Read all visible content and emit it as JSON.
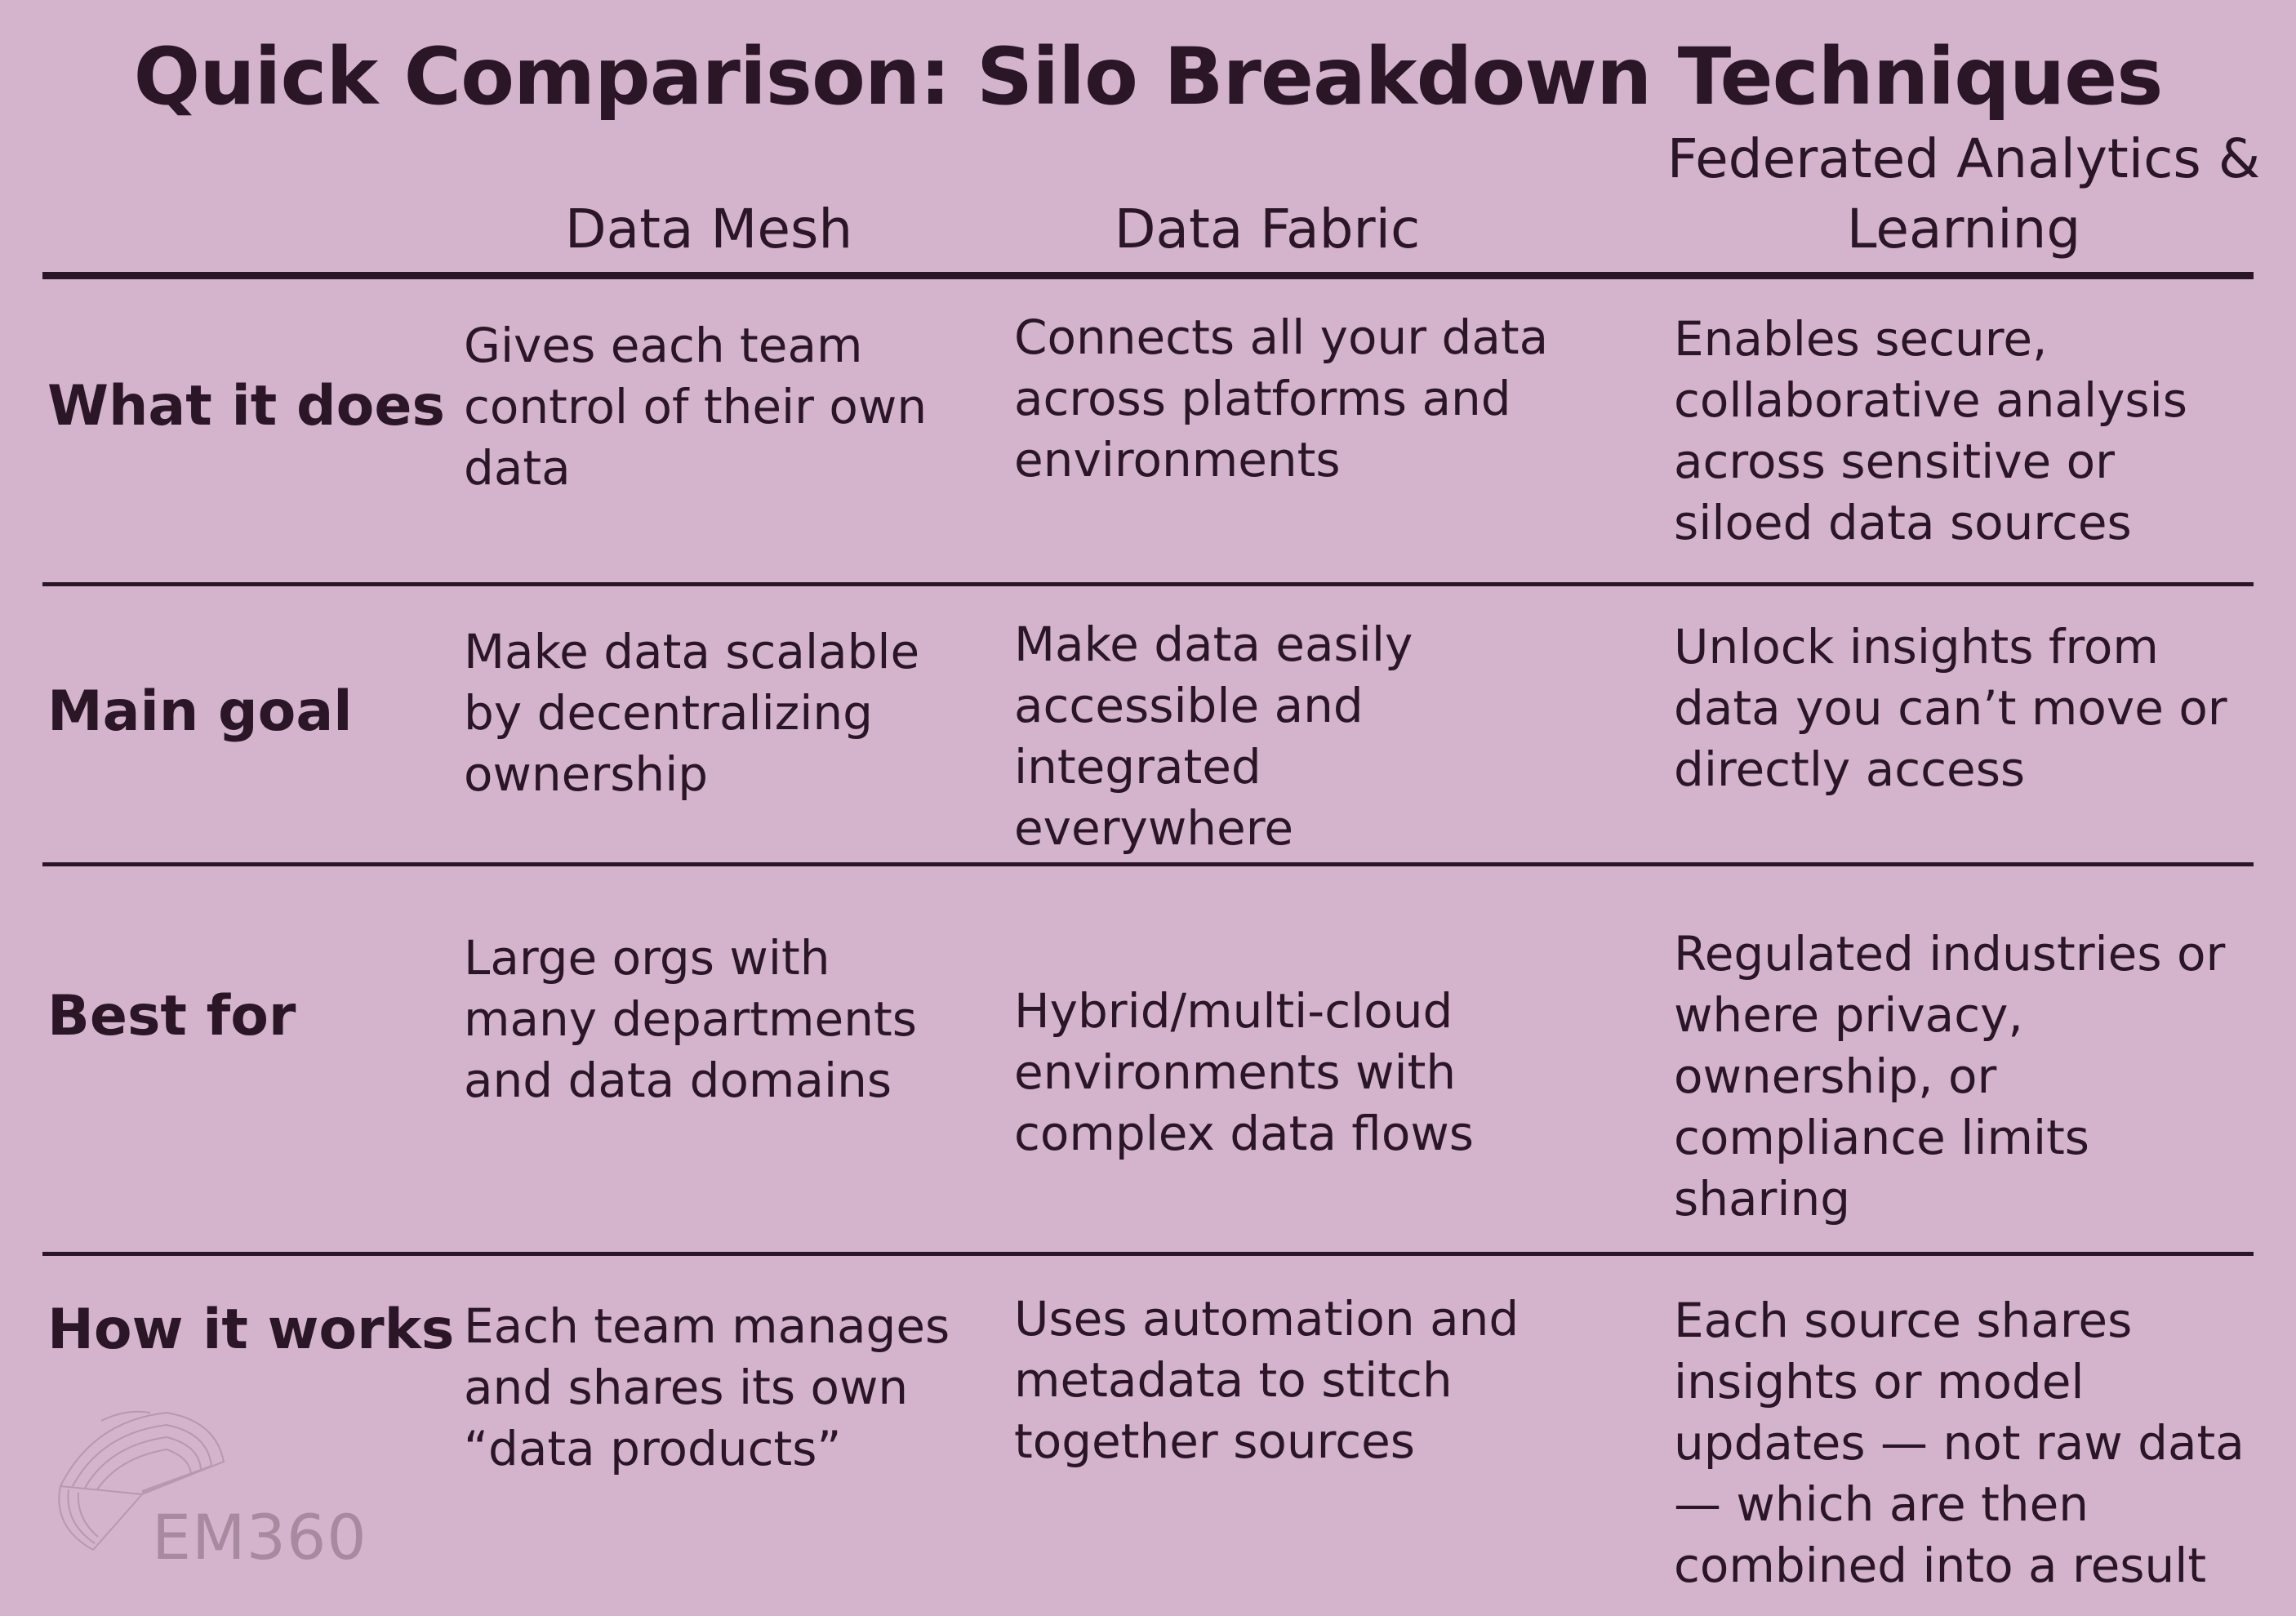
{
  "title": "Quick Comparison: Silo Breakdown Techniques",
  "columns": [
    "Data Mesh",
    "Data Fabric",
    "Federated Analytics & Learning"
  ],
  "rows": [
    {
      "label": "What it does",
      "cells": [
        "Gives each team control of their own data",
        "Connects all your data across platforms and environments",
        "Enables secure, collaborative analysis across sensitive or siloed data sources"
      ]
    },
    {
      "label": "Main goal",
      "cells": [
        "Make data scalable by decentralizing ownership",
        "Make data easily accessible and integrated everywhere",
        "Unlock insights from data you can’t move or directly access"
      ]
    },
    {
      "label": "Best for",
      "cells": [
        "Large orgs with many departments and data domains",
        "Hybrid/multi-cloud environments with complex data flows",
        "Regulated industries or where privacy, ownership, or compliance limits sharing"
      ]
    },
    {
      "label": "How it works",
      "cells": [
        "Each team manages and shares its own “data products”",
        "Uses automation and metadata to stitch together sources",
        "Each source shares insights or model updates — not raw data — which are then combined into a result"
      ]
    }
  ],
  "logo": {
    "text": "EM360"
  },
  "colors": {
    "background": "#d4b4cc",
    "text": "#2a1626",
    "logo": "#a88aa0"
  }
}
